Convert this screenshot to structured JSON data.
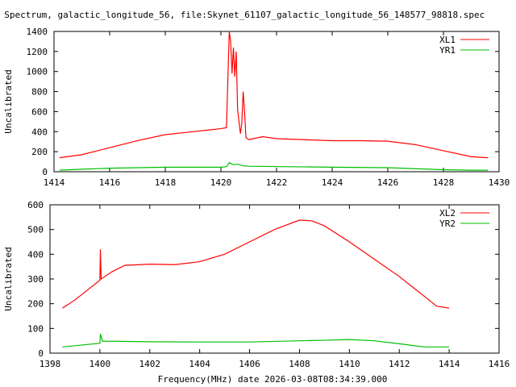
{
  "title": "S Spectrum, galactic_longitude_56, file:Skynet_61107_galactic_longitude_56_148577_98818.spec",
  "xlabel": "Frequency(MHz) date 2026-03-08T08:34:39.000",
  "colors": {
    "x": "#ff0000",
    "y": "#00c000"
  },
  "chart_data": [
    {
      "type": "line",
      "ylabel": "Uncalibrated",
      "xlim": [
        1414,
        1430
      ],
      "ylim": [
        0,
        1400
      ],
      "xticks": [
        1414,
        1416,
        1418,
        1420,
        1422,
        1424,
        1426,
        1428,
        1430
      ],
      "yticks": [
        0,
        200,
        400,
        600,
        800,
        1000,
        1200,
        1400
      ],
      "legend": "top-right",
      "series": [
        {
          "name": "XL1",
          "x": [
            1414.2,
            1415,
            1416,
            1417,
            1418,
            1419,
            1420,
            1420.2,
            1420.3,
            1420.35,
            1420.4,
            1420.45,
            1420.5,
            1420.55,
            1420.6,
            1420.7,
            1420.75,
            1420.8,
            1420.85,
            1420.9,
            1421,
            1421.5,
            1422,
            1423,
            1424,
            1425,
            1426,
            1427,
            1428,
            1429,
            1429.6
          ],
          "y": [
            140,
            170,
            240,
            310,
            370,
            400,
            430,
            440,
            1400,
            1300,
            980,
            1240,
            950,
            1200,
            620,
            380,
            480,
            800,
            600,
            340,
            320,
            350,
            330,
            320,
            310,
            310,
            305,
            270,
            210,
            150,
            140
          ]
        },
        {
          "name": "YR1",
          "x": [
            1414.2,
            1415,
            1416,
            1418,
            1420,
            1420.2,
            1420.3,
            1420.45,
            1420.6,
            1420.8,
            1421,
            1424,
            1426,
            1427,
            1428,
            1429,
            1429.6
          ],
          "y": [
            15,
            25,
            35,
            45,
            45,
            50,
            90,
            70,
            75,
            60,
            55,
            45,
            40,
            30,
            20,
            15,
            15
          ]
        }
      ]
    },
    {
      "type": "line",
      "ylabel": "Uncalibrated",
      "xlim": [
        1398,
        1416
      ],
      "ylim": [
        0,
        600
      ],
      "xticks": [
        1398,
        1400,
        1402,
        1404,
        1406,
        1408,
        1410,
        1412,
        1414,
        1416
      ],
      "yticks": [
        0,
        100,
        200,
        300,
        400,
        500,
        600
      ],
      "legend": "top-right",
      "series": [
        {
          "name": "XL2",
          "x": [
            1398.5,
            1399,
            1399.5,
            1400,
            1400.02,
            1400.05,
            1400.5,
            1401,
            1402,
            1403,
            1404,
            1405,
            1406,
            1407,
            1408,
            1408.5,
            1409,
            1410,
            1411,
            1412,
            1413,
            1413.5,
            1414
          ],
          "y": [
            182,
            215,
            255,
            295,
            420,
            300,
            330,
            355,
            360,
            358,
            370,
            400,
            450,
            500,
            538,
            535,
            515,
            450,
            380,
            310,
            230,
            190,
            182
          ]
        },
        {
          "name": "YR2",
          "x": [
            1398.5,
            1399,
            1400,
            1400.02,
            1400.1,
            1400.5,
            1402,
            1404,
            1406,
            1408,
            1409,
            1410,
            1411,
            1412,
            1413,
            1414
          ],
          "y": [
            25,
            30,
            40,
            78,
            48,
            48,
            46,
            45,
            45,
            50,
            52,
            55,
            50,
            38,
            25,
            25
          ]
        }
      ]
    }
  ]
}
